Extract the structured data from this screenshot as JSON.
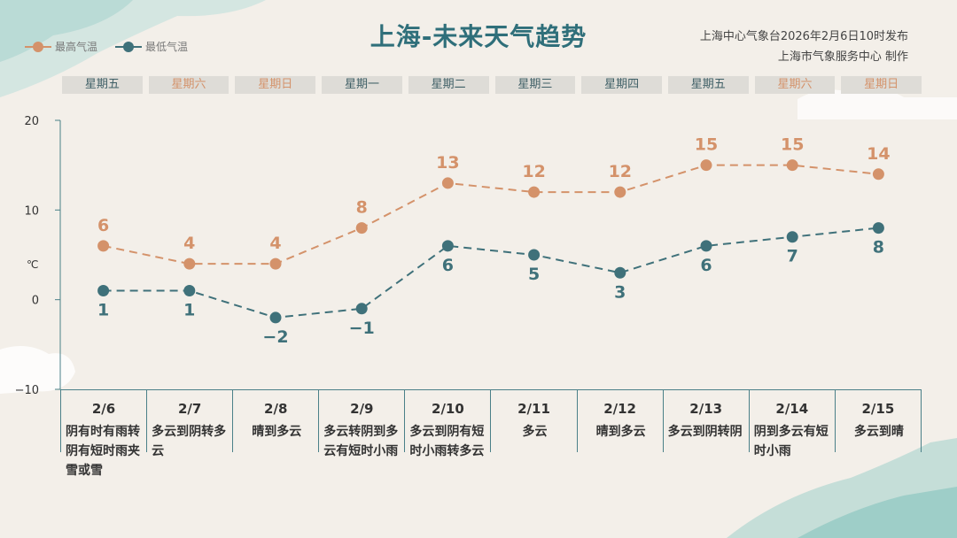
{
  "header": {
    "title": "上海-未来天气趋势",
    "source_line1": "上海中心气象台2026年2月6日10时发布",
    "source_line2": "上海市气象服务中心  制作"
  },
  "colors": {
    "high": "#d4926a",
    "low": "#3f717a",
    "axis": "#4a8088"
  },
  "chart_data": {
    "type": "line",
    "title": "上海-未来天气趋势",
    "ylabel": "℃",
    "ylim": [
      -10,
      20
    ],
    "yticks": [
      "20",
      "10",
      "0",
      "−10"
    ],
    "legend": "top-left",
    "grid": false,
    "categories": [
      "2/6",
      "2/7",
      "2/8",
      "2/9",
      "2/10",
      "2/11",
      "2/12",
      "2/13",
      "2/14",
      "2/15"
    ],
    "weekdays": [
      "星期五",
      "星期六",
      "星期日",
      "星期一",
      "星期二",
      "星期三",
      "星期四",
      "星期五",
      "星期六",
      "星期日"
    ],
    "weekend": [
      false,
      true,
      true,
      false,
      false,
      false,
      false,
      false,
      true,
      true
    ],
    "series": [
      {
        "name": "最高气温",
        "values": [
          6,
          4,
          4,
          8,
          13,
          12,
          12,
          15,
          15,
          14
        ],
        "labels": [
          "6",
          "4",
          "4",
          "8",
          "13",
          "12",
          "12",
          "15",
          "15",
          "14"
        ]
      },
      {
        "name": "最低气温",
        "values": [
          1,
          1,
          -2,
          -1,
          6,
          5,
          3,
          6,
          7,
          8
        ],
        "labels": [
          "1",
          "1",
          "−2",
          "−1",
          "6",
          "5",
          "3",
          "6",
          "7",
          "8"
        ]
      }
    ],
    "descriptions": [
      "阴有时有雨转阴有短时雨夹雪或雪",
      "多云到阴转多云",
      "晴到多云",
      "多云转阴到多云有短时小雨",
      "多云到阴有短时小雨转多云",
      "多云",
      "晴到多云",
      "多云到阴转阴",
      "阴到多云有短时小雨",
      "多云到晴"
    ]
  }
}
